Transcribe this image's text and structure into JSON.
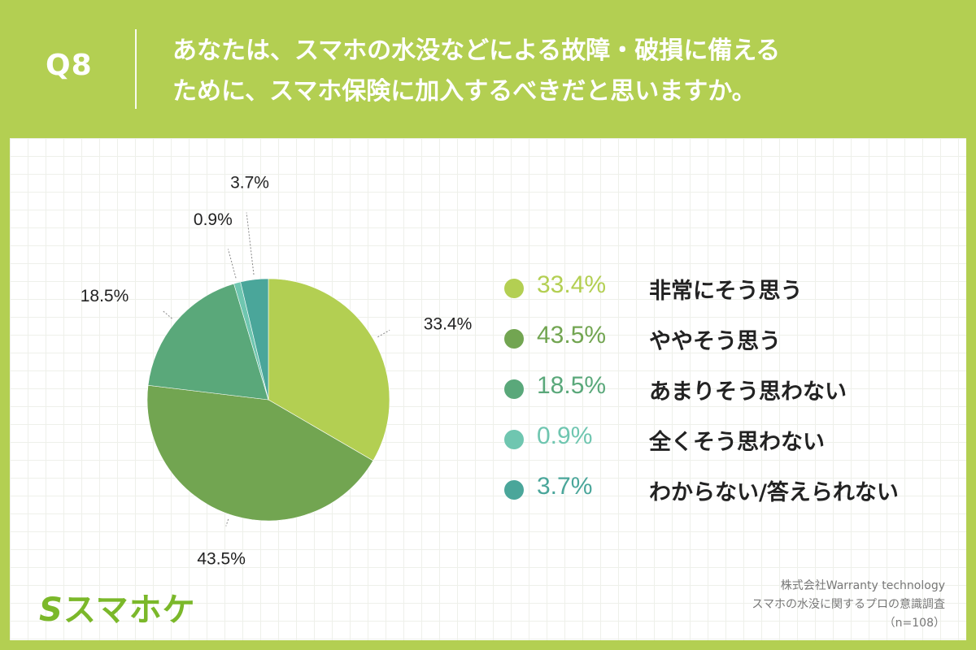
{
  "header": {
    "qnum": "Q8",
    "question_line1": "あなたは、スマホの水没などによる故障・破損に備える",
    "question_line2": "ために、スマホ保険に加入するべきだと思いますか。"
  },
  "chart_data": {
    "type": "pie",
    "start": "top",
    "direction": "clockwise",
    "slices": [
      {
        "label": "非常にそう思う",
        "value": 33.4,
        "pct_label": "33.4%",
        "color": "#b3cf52"
      },
      {
        "label": "ややそう思う",
        "value": 43.5,
        "pct_label": "43.5%",
        "color": "#72a551"
      },
      {
        "label": "あまりそう思わない",
        "value": 18.5,
        "pct_label": "18.5%",
        "color": "#5aa87a"
      },
      {
        "label": "全くそう思わない",
        "value": 0.9,
        "pct_label": "0.9%",
        "color": "#6fc6b0"
      },
      {
        "label": "わからない/答えられない",
        "value": 3.7,
        "pct_label": "3.7%",
        "color": "#4aa69a"
      }
    ]
  },
  "legend": {
    "items": [
      {
        "pct": "33.4%",
        "label": "非常にそう思う",
        "color": "#b3cf52"
      },
      {
        "pct": "43.5%",
        "label": "ややそう思う",
        "color": "#72a551"
      },
      {
        "pct": "18.5%",
        "label": "あまりそう思わない",
        "color": "#5aa87a"
      },
      {
        "pct": "0.9%",
        "label": "全くそう思わない",
        "color": "#6fc6b0"
      },
      {
        "pct": "3.7%",
        "label": "わからない/答えられない",
        "color": "#4aa69a"
      }
    ]
  },
  "footer": {
    "logo": "スマホケ",
    "logo_mark": "S",
    "company": "株式会社Warranty technology",
    "survey": "スマホの水没に関するプロの意識調査",
    "sample": "（n=108）"
  },
  "colors": {
    "background": "#b3cf52",
    "panel": "#ffffff",
    "logo": "#7bb82a"
  }
}
